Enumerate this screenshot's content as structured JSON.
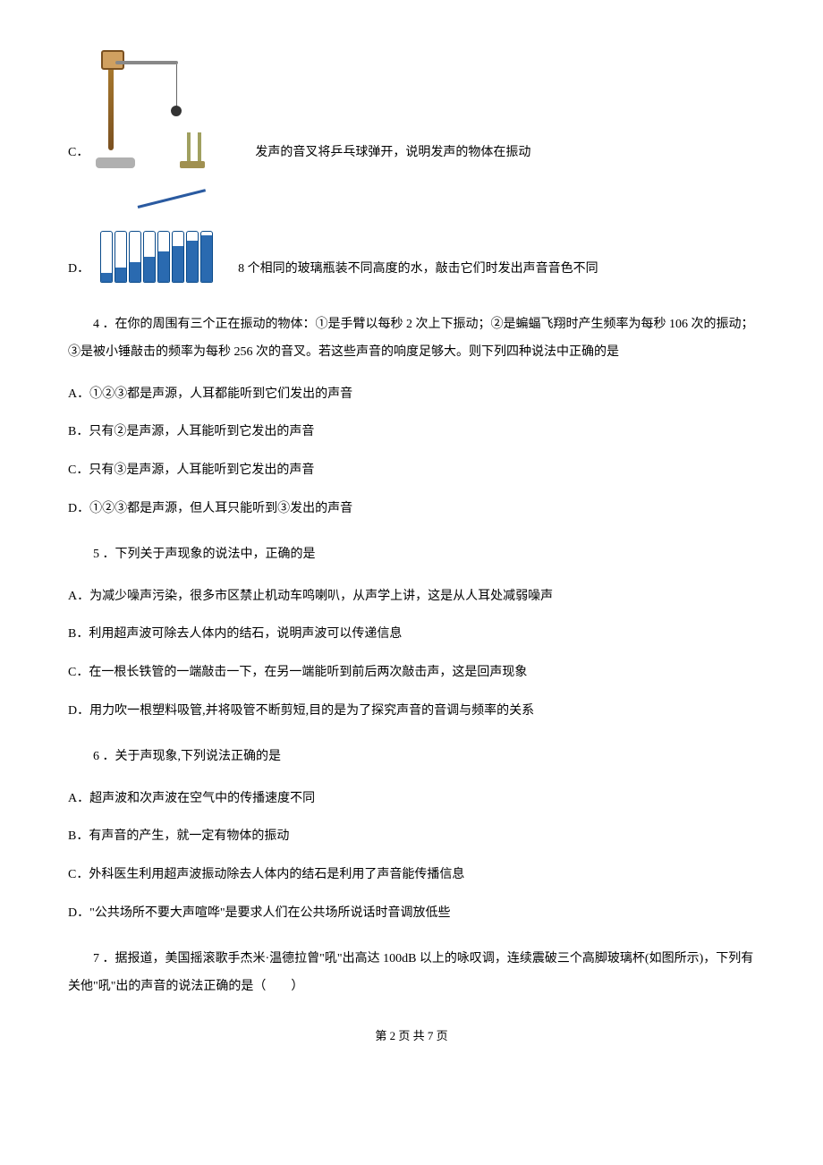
{
  "options_with_image": {
    "C": {
      "letter": "C．",
      "text": "发声的音叉将乒乓球弹开，说明发声的物体在振动"
    },
    "D": {
      "letter": "D．",
      "text": "8 个相同的玻璃瓶装不同高度的水，敲击它们时发出声音音色不同"
    }
  },
  "questions": {
    "q4": {
      "stem": "4 ．在你的周围有三个正在振动的物体：①是手臂以每秒 2 次上下振动；②是蝙蝠飞翔时产生频率为每秒 106 次的振动；③是被小锤敲击的频率为每秒 256 次的音叉。若这些声音的响度足够大。则下列四种说法中正确的是",
      "A": "A．①②③都是声源，人耳都能听到它们发出的声音",
      "B": "B．只有②是声源，人耳能听到它发出的声音",
      "C": "C．只有③是声源，人耳能听到它发出的声音",
      "D": "D．①②③都是声源，但人耳只能听到③发出的声音"
    },
    "q5": {
      "stem": "5 ．下列关于声现象的说法中，正确的是",
      "A": "A．为减少噪声污染，很多市区禁止机动车鸣喇叭，从声学上讲，这是从人耳处减弱噪声",
      "B": "B．利用超声波可除去人体内的结石，说明声波可以传递信息",
      "C": "C．在一根长铁管的一端敲击一下，在另一端能听到前后两次敲击声，这是回声现象",
      "D": "D．用力吹一根塑料吸管,并将吸管不断剪短,目的是为了探究声音的音调与频率的关系"
    },
    "q6": {
      "stem": "6 ．关于声现象,下列说法正确的是",
      "A": "A．超声波和次声波在空气中的传播速度不同",
      "B": "B．有声音的产生，就一定有物体的振动",
      "C": "C．外科医生利用超声波振动除去人体内的结石是利用了声音能传播信息",
      "D": "D．\"公共场所不要大声喧哗\"是要求人们在公共场所说话时音调放低些"
    },
    "q7": {
      "stem": "7 ．据报道，美国摇滚歌手杰米·温德拉曾\"吼\"出高达 100dB 以上的咏叹调，连续震破三个高脚玻璃杯(如图所示)，下列有关他\"吼\"出的声音的说法正确的是（　　）"
    }
  },
  "bottles": {
    "positions": [
      4,
      20,
      36,
      52,
      68,
      84,
      100,
      116
    ],
    "water_heights": [
      10,
      16,
      22,
      28,
      34,
      40,
      46,
      52
    ],
    "color": "#2a6ab0",
    "border_color": "#0a4a8a"
  },
  "footer": "第 2 页 共 7 页"
}
